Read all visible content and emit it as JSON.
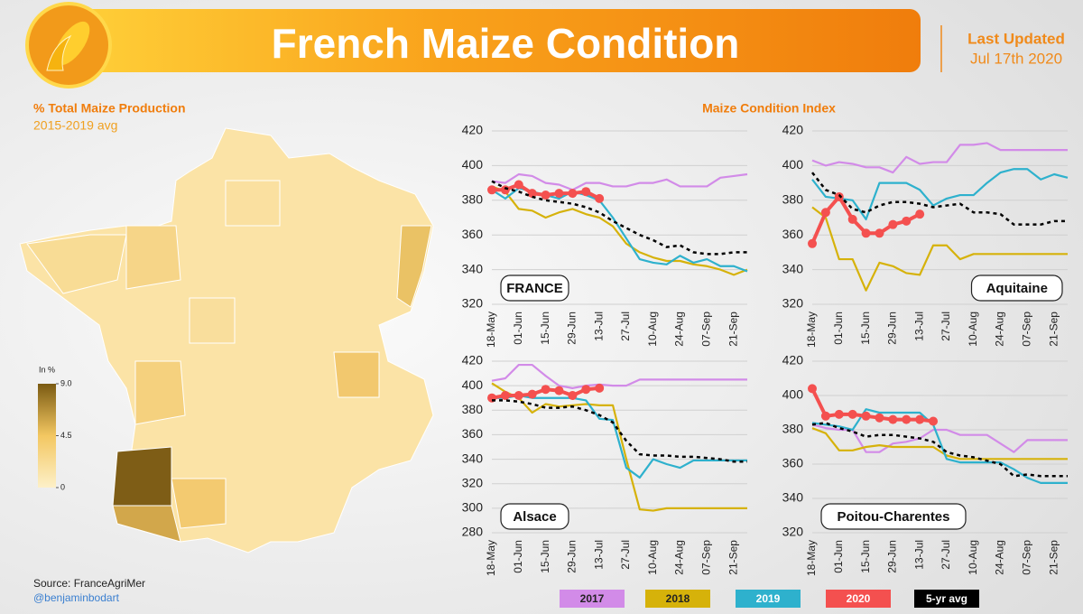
{
  "header": {
    "title": "French Maize Condition",
    "updated_label": "Last Updated",
    "updated_date": "Jul 17th 2020"
  },
  "map": {
    "title": "% Total Maize Production",
    "subtitle": "2015-2019 avg",
    "legend_title": "In %",
    "clim": [
      0,
      9
    ],
    "colorbar_ticks": [
      {
        "value": 9,
        "label": "9.0"
      },
      4.5,
      0
    ]
  },
  "section_title": "Maize Condition Index",
  "source": "Source: FranceAgriMer",
  "credit": "@benjaminbodart",
  "chart_data": [
    {
      "type": "line",
      "title": "FRANCE",
      "ylim": [
        320,
        420
      ],
      "yticks": [
        320,
        340,
        360,
        380,
        400,
        420
      ],
      "grid": true,
      "categories": [
        "18-May",
        null,
        "01-Jun",
        null,
        "15-Jun",
        null,
        "29-Jun",
        null,
        "13-Jul",
        null,
        "27-Jul",
        null,
        "10-Aug",
        null,
        "24-Aug",
        null,
        "07-Sep",
        null,
        "21-Sep",
        null
      ],
      "series": [
        {
          "name": "2017",
          "color": "#d28be8",
          "values": [
            391,
            390,
            395,
            394,
            390,
            389,
            386,
            390,
            390,
            388,
            388,
            390,
            390,
            392,
            388,
            388,
            388,
            393,
            394,
            395
          ]
        },
        {
          "name": "2018",
          "color": "#d6b20a",
          "values": [
            388,
            385,
            375,
            374,
            370,
            373,
            375,
            372,
            370,
            365,
            355,
            350,
            347,
            345,
            345,
            343,
            342,
            340,
            337,
            340
          ]
        },
        {
          "name": "2019",
          "color": "#2eb1cd",
          "values": [
            386,
            381,
            387,
            385,
            383,
            381,
            385,
            383,
            380,
            370,
            358,
            346,
            344,
            343,
            348,
            344,
            346,
            342,
            342,
            339
          ]
        },
        {
          "name": "2020",
          "color": "#f4504f",
          "values": [
            386,
            386,
            389,
            384,
            383,
            384,
            384,
            385,
            381,
            null,
            null,
            null,
            null,
            null,
            null,
            null,
            null,
            null,
            null,
            null
          ]
        },
        {
          "name": "5-yr avg",
          "color": "#000000",
          "style": "dashed",
          "values": [
            391,
            387,
            385,
            382,
            380,
            379,
            378,
            376,
            373,
            368,
            364,
            360,
            357,
            353,
            354,
            350,
            349,
            349,
            350,
            350
          ]
        }
      ]
    },
    {
      "type": "line",
      "title": "Aquitaine",
      "ylim": [
        320,
        420
      ],
      "yticks": [
        320,
        340,
        360,
        380,
        400,
        420
      ],
      "grid": true,
      "categories": [
        "18-May",
        null,
        "01-Jun",
        null,
        "15-Jun",
        null,
        "29-Jun",
        null,
        "13-Jul",
        null,
        "27-Jul",
        null,
        "10-Aug",
        null,
        "24-Aug",
        null,
        "07-Sep",
        null,
        "21-Sep",
        null
      ],
      "series": [
        {
          "name": "2017",
          "color": "#d28be8",
          "values": [
            403,
            400,
            402,
            401,
            399,
            399,
            396,
            405,
            401,
            402,
            402,
            412,
            412,
            413,
            409,
            409,
            409,
            409,
            409,
            409
          ]
        },
        {
          "name": "2018",
          "color": "#d6b20a",
          "values": [
            376,
            370,
            346,
            346,
            328,
            344,
            342,
            338,
            337,
            354,
            354,
            346,
            349,
            349,
            349,
            349,
            349,
            349,
            349,
            349
          ]
        },
        {
          "name": "2019",
          "color": "#2eb1cd",
          "values": [
            392,
            382,
            381,
            380,
            369,
            390,
            390,
            390,
            386,
            377,
            381,
            383,
            383,
            390,
            396,
            398,
            398,
            392,
            395,
            393
          ]
        },
        {
          "name": "2020",
          "color": "#f4504f",
          "values": [
            355,
            373,
            382,
            369,
            361,
            361,
            366,
            368,
            372,
            null,
            null,
            null,
            null,
            null,
            null,
            null,
            null,
            null,
            null,
            null
          ]
        },
        {
          "name": "5-yr avg",
          "color": "#000000",
          "style": "dashed",
          "values": [
            396,
            386,
            383,
            375,
            373,
            377,
            379,
            379,
            378,
            376,
            377,
            378,
            373,
            373,
            372,
            366,
            366,
            366,
            368,
            368
          ]
        }
      ]
    },
    {
      "type": "line",
      "title": "Alsace",
      "ylim": [
        280,
        420
      ],
      "yticks": [
        280,
        300,
        320,
        340,
        360,
        380,
        400,
        420
      ],
      "grid": true,
      "categories": [
        "18-May",
        null,
        "01-Jun",
        null,
        "15-Jun",
        null,
        "29-Jun",
        null,
        "13-Jul",
        null,
        "27-Jul",
        null,
        "10-Aug",
        null,
        "24-Aug",
        null,
        "07-Sep",
        null,
        "21-Sep",
        null
      ],
      "series": [
        {
          "name": "2017",
          "color": "#d28be8",
          "values": [
            404,
            406,
            417,
            417,
            408,
            400,
            398,
            400,
            401,
            400,
            400,
            405,
            405,
            405,
            405,
            405,
            405,
            405,
            405,
            405
          ]
        },
        {
          "name": "2018",
          "color": "#d6b20a",
          "values": [
            402,
            395,
            390,
            378,
            385,
            383,
            384,
            385,
            384,
            384,
            340,
            299,
            298,
            300,
            300,
            300,
            300,
            300,
            300,
            300
          ]
        },
        {
          "name": "2019",
          "color": "#2eb1cd",
          "values": [
            390,
            390,
            392,
            390,
            390,
            390,
            390,
            388,
            373,
            372,
            333,
            325,
            340,
            336,
            333,
            339,
            339,
            339,
            339,
            339
          ]
        },
        {
          "name": "2020",
          "color": "#f4504f",
          "values": [
            390,
            392,
            392,
            393,
            397,
            396,
            392,
            397,
            398,
            null,
            null,
            null,
            null,
            null,
            null,
            null,
            null,
            null,
            null,
            null
          ]
        },
        {
          "name": "5-yr avg",
          "color": "#000000",
          "style": "dashed",
          "values": [
            388,
            388,
            387,
            385,
            382,
            382,
            383,
            380,
            376,
            370,
            355,
            344,
            343,
            343,
            342,
            342,
            341,
            340,
            338,
            338
          ]
        }
      ]
    },
    {
      "type": "line",
      "title": "Poitou-Charentes",
      "ylim": [
        320,
        420
      ],
      "yticks": [
        320,
        340,
        360,
        380,
        400,
        420
      ],
      "grid": true,
      "categories": [
        "18-May",
        null,
        "01-Jun",
        null,
        "15-Jun",
        null,
        "29-Jun",
        null,
        "13-Jul",
        null,
        "27-Jul",
        null,
        "10-Aug",
        null,
        "24-Aug",
        null,
        "07-Sep",
        null,
        "21-Sep",
        null
      ],
      "series": [
        {
          "name": "2017",
          "color": "#d28be8",
          "values": [
            383,
            381,
            380,
            380,
            367,
            367,
            372,
            373,
            375,
            380,
            380,
            377,
            377,
            377,
            372,
            367,
            374,
            374,
            374,
            374
          ]
        },
        {
          "name": "2018",
          "color": "#d6b20a",
          "values": [
            381,
            378,
            368,
            368,
            370,
            371,
            370,
            370,
            370,
            370,
            365,
            363,
            363,
            363,
            363,
            363,
            363,
            363,
            363,
            363
          ]
        },
        {
          "name": "2019",
          "color": "#2eb1cd",
          "values": [
            384,
            383,
            382,
            380,
            392,
            390,
            390,
            390,
            390,
            383,
            363,
            361,
            361,
            361,
            361,
            357,
            352,
            349,
            349,
            349
          ]
        },
        {
          "name": "2020",
          "color": "#f4504f",
          "values": [
            404,
            388,
            389,
            389,
            388,
            387,
            386,
            386,
            386,
            385,
            null,
            null,
            null,
            null,
            null,
            null,
            null,
            null,
            null,
            null
          ]
        },
        {
          "name": "5-yr avg",
          "color": "#000000",
          "style": "dashed",
          "values": [
            383,
            384,
            381,
            379,
            376,
            377,
            377,
            376,
            375,
            373,
            367,
            365,
            364,
            362,
            360,
            353,
            354,
            353,
            353,
            353
          ]
        }
      ]
    }
  ]
}
